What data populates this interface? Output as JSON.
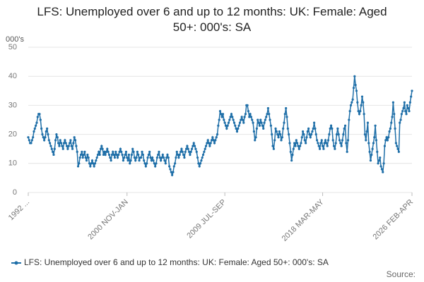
{
  "chart_data": {
    "type": "line",
    "title": "LFS: Unemployed over 6 and up to 12 months: UK: Female: Aged 50+: 000's: SA",
    "y_label": "000's",
    "source": "Source:",
    "categories": [
      "1992 ...",
      null,
      null,
      null,
      null,
      null,
      null,
      null,
      null,
      null,
      null,
      null,
      null,
      null,
      null,
      null,
      null,
      null,
      null,
      null,
      null,
      null,
      null,
      null,
      null,
      null,
      null,
      null,
      null,
      null,
      null,
      null,
      null,
      null,
      null,
      null,
      null,
      null,
      null,
      null,
      null,
      null,
      null,
      null,
      null,
      null,
      null,
      null,
      null,
      null,
      null,
      null,
      null,
      null,
      null,
      null,
      null,
      null,
      null,
      null,
      null,
      null,
      null,
      null,
      null,
      null,
      null,
      null,
      null,
      null,
      null,
      null,
      null,
      null,
      null,
      null,
      null,
      null,
      null,
      null,
      null,
      null,
      null,
      null,
      null,
      null,
      null,
      null,
      null,
      null,
      null,
      null,
      null,
      null,
      null,
      null,
      null,
      null,
      null,
      null,
      null,
      null,
      null,
      null,
      null,
      "2000 NOV-JAN",
      null,
      null,
      null,
      null,
      null,
      null,
      null,
      null,
      null,
      null,
      null,
      null,
      null,
      null,
      null,
      null,
      null,
      null,
      null,
      null,
      null,
      null,
      null,
      null,
      null,
      null,
      null,
      null,
      null,
      null,
      null,
      null,
      null,
      null,
      null,
      null,
      null,
      null,
      null,
      null,
      null,
      null,
      null,
      null,
      null,
      null,
      null,
      null,
      null,
      null,
      null,
      null,
      null,
      null,
      null,
      null,
      null,
      null,
      null,
      null,
      null,
      null,
      null,
      null,
      null,
      null,
      null,
      null,
      null,
      null,
      null,
      null,
      null,
      null,
      null,
      null,
      null,
      null,
      null,
      null,
      null,
      null,
      null,
      null,
      null,
      null,
      null,
      null,
      null,
      null,
      null,
      null,
      null,
      null,
      null,
      null,
      null,
      null,
      null,
      null,
      null,
      null,
      null,
      "2009 JUL-SEP",
      null,
      null,
      null,
      null,
      null,
      null,
      null,
      null,
      null,
      null,
      null,
      null,
      null,
      null,
      null,
      null,
      null,
      null,
      null,
      null,
      null,
      null,
      null,
      null,
      null,
      null,
      null,
      null,
      null,
      null,
      null,
      null,
      null,
      null,
      null,
      null,
      null,
      null,
      null,
      null,
      null,
      null,
      null,
      null,
      null,
      null,
      null,
      null,
      null,
      null,
      null,
      null,
      null,
      null,
      null,
      null,
      null,
      null,
      null,
      null,
      null,
      null,
      null,
      null,
      null,
      null,
      null,
      null,
      null,
      null,
      null,
      null,
      null,
      null,
      null,
      null,
      null,
      null,
      null,
      null,
      null,
      null,
      null,
      null,
      null,
      null,
      null,
      null,
      null,
      null,
      null,
      null,
      null,
      null,
      null,
      null,
      null,
      null,
      null,
      null,
      null,
      null,
      null,
      "2018 MAR-MAY",
      null,
      null,
      null,
      null,
      null,
      null,
      null,
      null,
      null,
      null,
      null,
      null,
      null,
      null,
      null,
      null,
      null,
      null,
      null,
      null,
      null,
      null,
      null,
      null,
      null,
      null,
      null,
      null,
      null,
      null,
      null,
      null,
      null,
      null,
      null,
      null,
      null,
      null,
      null,
      null,
      null,
      null,
      null,
      null,
      null,
      null,
      null,
      null,
      null,
      null,
      null,
      null,
      null,
      null,
      null,
      null,
      null,
      null,
      null,
      null,
      null,
      null,
      null,
      null,
      null,
      null,
      null,
      null,
      null,
      null,
      null,
      null,
      null,
      null,
      null,
      null,
      null,
      null,
      null,
      null,
      null,
      null,
      null,
      null,
      null,
      null,
      null,
      null,
      null,
      null,
      null,
      null,
      null,
      null,
      "2026 FEB-APR"
    ],
    "series": [
      {
        "name": "LFS: Unemployed over 6 and up to 12 months: UK: Female: Aged 50+: 000's: SA",
        "color": "#1f6fa8",
        "values": [
          19,
          18,
          17,
          17,
          18,
          19,
          21,
          22,
          23,
          24,
          26,
          27,
          27,
          25,
          22,
          20,
          19,
          18,
          19,
          21,
          22,
          20,
          18,
          17,
          16,
          15,
          14,
          13,
          15,
          18,
          20,
          19,
          17,
          16,
          18,
          17,
          16,
          15,
          17,
          18,
          17,
          16,
          15,
          16,
          17,
          18,
          16,
          15,
          17,
          19,
          18,
          16,
          14,
          9,
          10,
          12,
          13,
          14,
          12,
          13,
          14,
          12,
          11,
          13,
          12,
          10,
          9,
          10,
          11,
          10,
          9,
          10,
          11,
          12,
          13,
          14,
          13,
          15,
          16,
          15,
          13,
          14,
          13,
          14,
          15,
          14,
          13,
          12,
          11,
          13,
          14,
          13,
          12,
          14,
          13,
          12,
          13,
          14,
          15,
          14,
          13,
          11,
          12,
          13,
          14,
          12,
          11,
          13,
          10,
          11,
          13,
          15,
          14,
          12,
          11,
          12,
          14,
          13,
          11,
          12,
          12,
          14,
          13,
          11,
          10,
          9,
          10,
          12,
          13,
          14,
          12,
          11,
          12,
          11,
          10,
          9,
          10,
          12,
          13,
          14,
          12,
          11,
          12,
          13,
          12,
          11,
          10,
          12,
          13,
          12,
          9,
          8,
          7,
          6,
          7,
          9,
          10,
          12,
          14,
          13,
          12,
          13,
          14,
          15,
          14,
          13,
          12,
          14,
          15,
          16,
          15,
          14,
          13,
          14,
          15,
          16,
          17,
          16,
          15,
          14,
          12,
          10,
          9,
          10,
          11,
          12,
          13,
          14,
          15,
          16,
          17,
          18,
          17,
          16,
          17,
          18,
          19,
          18,
          17,
          18,
          19,
          20,
          23,
          25,
          28,
          27,
          26,
          27,
          25,
          24,
          23,
          22,
          23,
          24,
          25,
          26,
          27,
          26,
          25,
          24,
          23,
          22,
          21,
          22,
          23,
          24,
          25,
          26,
          25,
          24,
          26,
          27,
          30,
          30,
          28,
          26,
          27,
          26,
          25,
          24,
          21,
          18,
          19,
          22,
          25,
          24,
          23,
          25,
          24,
          23,
          22,
          24,
          25,
          26,
          27,
          29,
          27,
          25,
          23,
          20,
          16,
          15,
          18,
          22,
          21,
          20,
          19,
          21,
          20,
          18,
          19,
          22,
          24,
          27,
          29,
          26,
          22,
          20,
          17,
          14,
          11,
          13,
          15,
          17,
          16,
          18,
          17,
          16,
          15,
          16,
          17,
          19,
          21,
          20,
          18,
          17,
          19,
          21,
          22,
          20,
          19,
          20,
          21,
          22,
          24,
          22,
          20,
          18,
          17,
          16,
          15,
          17,
          18,
          16,
          15,
          17,
          18,
          17,
          16,
          18,
          20,
          22,
          23,
          22,
          18,
          16,
          15,
          17,
          20,
          22,
          20,
          18,
          17,
          16,
          18,
          20,
          22,
          23,
          17,
          14,
          18,
          25,
          28,
          30,
          31,
          32,
          36,
          40,
          37,
          35,
          31,
          28,
          27,
          28,
          30,
          33,
          31,
          27,
          20,
          18,
          21,
          24,
          17,
          14,
          11,
          13,
          15,
          17,
          19,
          23,
          18,
          14,
          10,
          11,
          12,
          9,
          8,
          7,
          10,
          16,
          18,
          19,
          18,
          19,
          21,
          22,
          24,
          26,
          31,
          27,
          22,
          17,
          16,
          15,
          14,
          24,
          25,
          27,
          28,
          29,
          31,
          28,
          27,
          30,
          29,
          28,
          31,
          33,
          35
        ]
      }
    ],
    "ylim": [
      0,
      50
    ],
    "yticks": [
      0,
      10,
      20,
      30,
      40,
      50
    ],
    "grid": true
  }
}
